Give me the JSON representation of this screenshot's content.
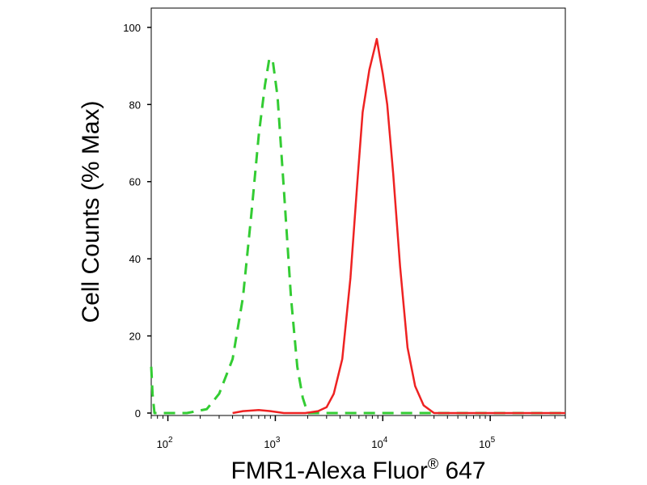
{
  "chart_data": {
    "type": "line",
    "title": "",
    "xlabel": "FMR1-Alexa Fluor",
    "xlabel_superscript": "®",
    "xlabel_suffix": " 647",
    "ylabel": "Cell Counts (% Max)",
    "x_scale": "log",
    "xlim": [
      70,
      500000
    ],
    "ylim": [
      0,
      105
    ],
    "grid": false,
    "y_ticks": [
      {
        "value": 0,
        "label": "0"
      },
      {
        "value": 20,
        "label": "20"
      },
      {
        "value": 40,
        "label": "40"
      },
      {
        "value": 60,
        "label": "60"
      },
      {
        "value": 80,
        "label": "80"
      },
      {
        "value": 100,
        "label": "100"
      }
    ],
    "x_ticks": [
      {
        "value": 100,
        "base": "10",
        "exp": "2"
      },
      {
        "value": 1000,
        "base": "10",
        "exp": "3"
      },
      {
        "value": 10000,
        "base": "10",
        "exp": "4"
      },
      {
        "value": 100000,
        "base": "10",
        "exp": "5"
      }
    ],
    "series": [
      {
        "color": "#33cc33",
        "dashed": true,
        "points": [
          [
            70,
            12
          ],
          [
            72,
            5
          ],
          [
            75,
            0
          ],
          [
            100,
            0
          ],
          [
            150,
            0
          ],
          [
            230,
            1
          ],
          [
            300,
            5
          ],
          [
            400,
            14
          ],
          [
            500,
            30
          ],
          [
            600,
            52
          ],
          [
            700,
            72
          ],
          [
            800,
            85
          ],
          [
            880,
            92
          ],
          [
            950,
            91
          ],
          [
            1050,
            82
          ],
          [
            1200,
            58
          ],
          [
            1400,
            30
          ],
          [
            1600,
            12
          ],
          [
            1800,
            4
          ],
          [
            2000,
            0
          ],
          [
            30000,
            0
          ],
          [
            500000,
            0
          ]
        ]
      },
      {
        "color": "#ee2222",
        "dashed": false,
        "points": [
          [
            400,
            0
          ],
          [
            500,
            0.5
          ],
          [
            700,
            0.8
          ],
          [
            900,
            0.5
          ],
          [
            1200,
            0
          ],
          [
            1900,
            0
          ],
          [
            2500,
            0.5
          ],
          [
            3000,
            1.5
          ],
          [
            3500,
            5
          ],
          [
            4200,
            14
          ],
          [
            5000,
            35
          ],
          [
            5800,
            60
          ],
          [
            6500,
            78
          ],
          [
            7500,
            89
          ],
          [
            8300,
            94
          ],
          [
            8800,
            97
          ],
          [
            9300,
            93
          ],
          [
            10000,
            88
          ],
          [
            11000,
            80
          ],
          [
            12500,
            62
          ],
          [
            14500,
            38
          ],
          [
            17000,
            17
          ],
          [
            20000,
            7
          ],
          [
            24000,
            2
          ],
          [
            30000,
            0
          ],
          [
            500000,
            0
          ]
        ]
      }
    ]
  }
}
